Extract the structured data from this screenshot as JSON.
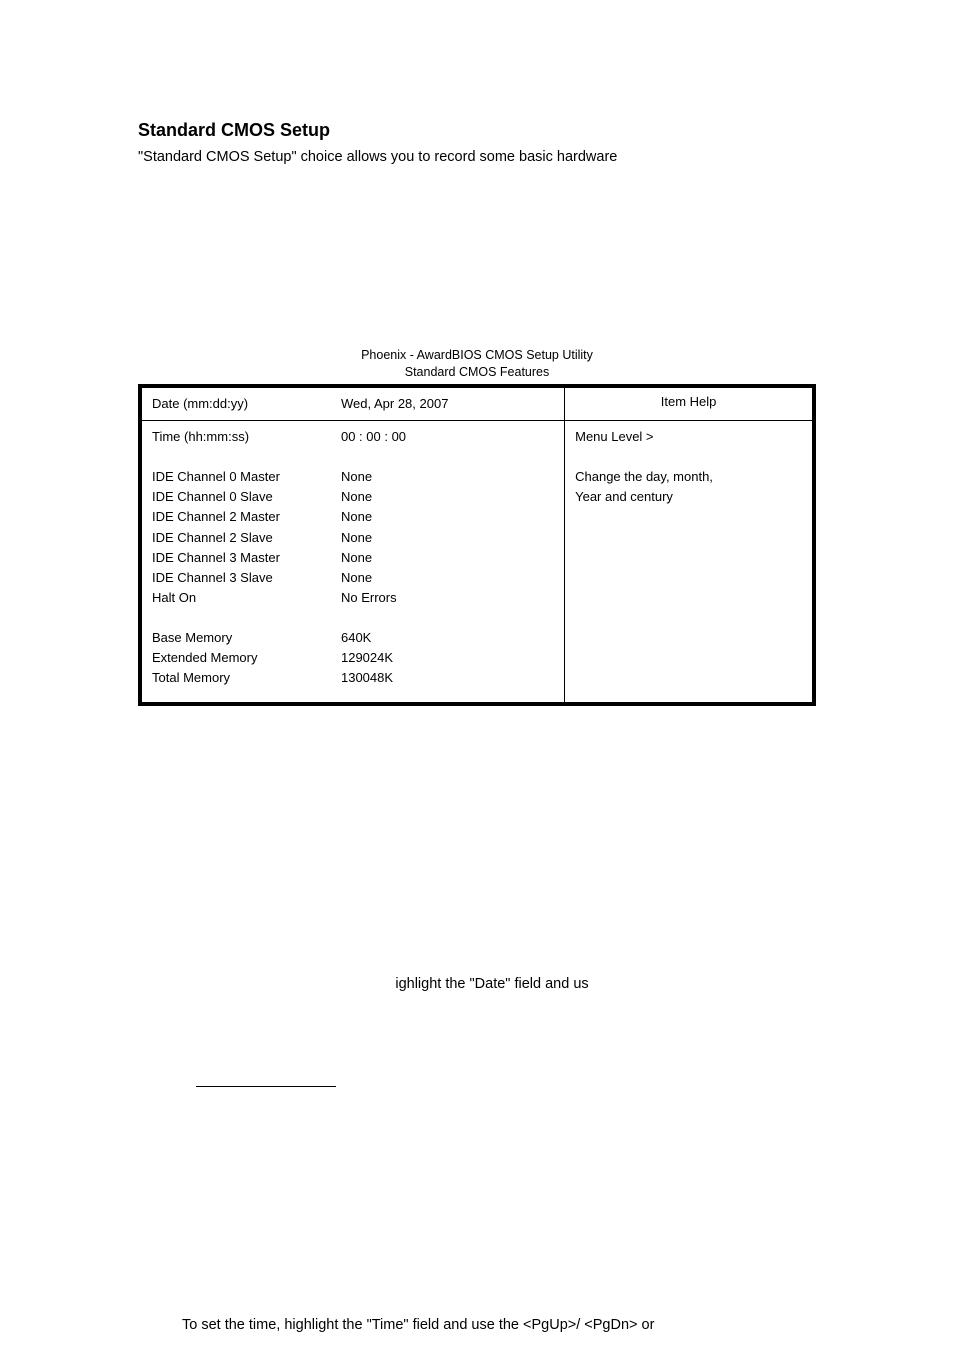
{
  "document": {
    "section_title": "Standard CMOS Setup",
    "intro_text": "\"Standard CMOS Setup\" choice allows you to record some basic hardware",
    "date_text_fragment": "ighlight the \"Date\" field and us",
    "time_text": "To set the time, highlight the \"Time\" field and use the <PgUp>/ <PgDn> or"
  },
  "bios": {
    "header_line1": "Phoenix - AwardBIOS CMOS Setup Utility",
    "header_line2": "Standard CMOS Features",
    "item_help_label": "Item Help",
    "date_label": "Date (mm:dd:yy)",
    "date_value": "Wed,  Apr 28, 2007",
    "time_label": "Time (hh:mm:ss)",
    "time_value": "00 : 00 : 00",
    "menu_level_label": "Menu Level  >",
    "help_line1": "Change the day, month,",
    "help_line2": "Year and century",
    "rows": [
      {
        "label": "IDE Channel 0 Master",
        "value": "None"
      },
      {
        "label": "IDE Channel 0 Slave",
        "value": "None"
      },
      {
        "label": "IDE Channel 2 Master",
        "value": "None"
      },
      {
        "label": "IDE Channel 2 Slave",
        "value": "None"
      },
      {
        "label": "IDE Channel 3 Master",
        "value": "None"
      },
      {
        "label": "IDE Channel 3 Slave",
        "value": "None"
      },
      {
        "label": "Halt On",
        "value": "No Errors"
      }
    ],
    "memory_rows": [
      {
        "label": "Base Memory",
        "value": "640K"
      },
      {
        "label": "Extended Memory",
        "value": "129024K"
      },
      {
        "label": "Total Memory",
        "value": "130048K"
      }
    ],
    "colors": {
      "background": "#ffffff",
      "text": "#000000",
      "border": "#000000"
    }
  }
}
